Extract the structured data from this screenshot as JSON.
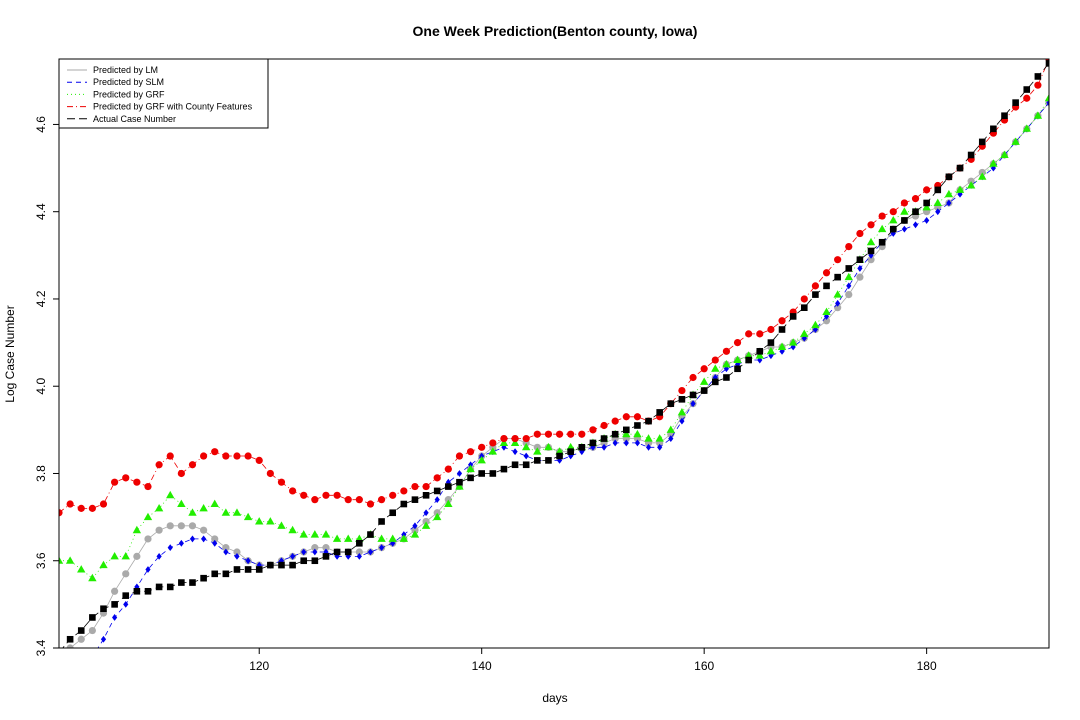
{
  "chart_data": {
    "type": "line",
    "title": "One Week Prediction(Benton county, Iowa)",
    "xlabel": "days",
    "ylabel": "Log Case Number",
    "xlim": [
      102,
      191
    ],
    "ylim": [
      3.4,
      4.75
    ],
    "xticks": [
      120,
      140,
      160,
      180
    ],
    "yticks": [
      3.4,
      3.6,
      3.8,
      4.0,
      4.2,
      4.4,
      4.6
    ],
    "x_start": 102,
    "legend_position": "top-left",
    "series": [
      {
        "name": "Predicted by LM",
        "color": "#aaaaaa",
        "marker": "circle",
        "values": [
          3.37,
          3.4,
          3.42,
          3.44,
          3.48,
          3.53,
          3.57,
          3.61,
          3.65,
          3.67,
          3.68,
          3.68,
          3.68,
          3.67,
          3.65,
          3.63,
          3.62,
          3.6,
          3.59,
          3.59,
          3.6,
          3.61,
          3.62,
          3.63,
          3.63,
          3.62,
          3.62,
          3.62,
          3.62,
          3.63,
          3.64,
          3.65,
          3.67,
          3.69,
          3.71,
          3.74,
          3.77,
          3.81,
          3.84,
          3.86,
          3.88,
          3.88,
          3.87,
          3.86,
          3.86,
          3.85,
          3.85,
          3.86,
          3.86,
          3.87,
          3.88,
          3.88,
          3.88,
          3.87,
          3.87,
          3.89,
          3.93,
          3.96,
          3.99,
          4.02,
          4.05,
          4.06,
          4.07,
          4.08,
          4.09,
          4.09,
          4.1,
          4.11,
          4.13,
          4.15,
          4.18,
          4.21,
          4.25,
          4.29,
          4.32,
          4.36,
          4.38,
          4.39,
          4.4,
          4.41,
          4.42,
          4.45,
          4.47,
          4.49,
          4.51,
          4.53,
          4.56,
          4.59,
          4.62,
          4.65
        ]
      },
      {
        "name": "Predicted by SLM",
        "color": "#0000ee",
        "marker": "diamond",
        "values": [
          3.34,
          3.36,
          3.37,
          3.38,
          3.42,
          3.47,
          3.5,
          3.54,
          3.58,
          3.61,
          3.63,
          3.64,
          3.65,
          3.65,
          3.64,
          3.62,
          3.61,
          3.6,
          3.59,
          3.59,
          3.6,
          3.61,
          3.62,
          3.62,
          3.62,
          3.61,
          3.61,
          3.61,
          3.62,
          3.63,
          3.64,
          3.66,
          3.68,
          3.71,
          3.74,
          3.78,
          3.8,
          3.82,
          3.84,
          3.85,
          3.86,
          3.85,
          3.84,
          3.83,
          3.83,
          3.83,
          3.84,
          3.85,
          3.86,
          3.86,
          3.87,
          3.87,
          3.87,
          3.86,
          3.86,
          3.88,
          3.92,
          3.96,
          3.99,
          4.02,
          4.04,
          4.05,
          4.06,
          4.06,
          4.07,
          4.08,
          4.09,
          4.11,
          4.13,
          4.16,
          4.19,
          4.23,
          4.27,
          4.3,
          4.33,
          4.35,
          4.36,
          4.37,
          4.38,
          4.4,
          4.42,
          4.44,
          4.46,
          4.48,
          4.5,
          4.53,
          4.56,
          4.59,
          4.62,
          4.65
        ]
      },
      {
        "name": "Predicted by GRF",
        "color": "#22ee00",
        "marker": "triangle",
        "values": [
          3.6,
          3.6,
          3.58,
          3.56,
          3.59,
          3.61,
          3.61,
          3.67,
          3.7,
          3.72,
          3.75,
          3.73,
          3.71,
          3.72,
          3.73,
          3.71,
          3.71,
          3.7,
          3.69,
          3.69,
          3.68,
          3.67,
          3.66,
          3.66,
          3.66,
          3.65,
          3.65,
          3.65,
          3.66,
          3.65,
          3.65,
          3.65,
          3.66,
          3.68,
          3.7,
          3.73,
          3.77,
          3.81,
          3.83,
          3.85,
          3.87,
          3.87,
          3.86,
          3.85,
          3.86,
          3.85,
          3.86,
          3.86,
          3.87,
          3.88,
          3.89,
          3.89,
          3.89,
          3.88,
          3.88,
          3.9,
          3.94,
          3.98,
          4.01,
          4.04,
          4.05,
          4.06,
          4.07,
          4.07,
          4.08,
          4.09,
          4.1,
          4.12,
          4.14,
          4.17,
          4.21,
          4.25,
          4.29,
          4.33,
          4.36,
          4.38,
          4.4,
          4.4,
          4.41,
          4.42,
          4.44,
          4.45,
          4.46,
          4.48,
          4.51,
          4.53,
          4.56,
          4.59,
          4.62,
          4.66
        ]
      },
      {
        "name": "Predicted by GRF with County Features",
        "color": "#ee0000",
        "marker": "circle",
        "values": [
          3.71,
          3.73,
          3.72,
          3.72,
          3.73,
          3.78,
          3.79,
          3.78,
          3.77,
          3.82,
          3.84,
          3.8,
          3.82,
          3.84,
          3.85,
          3.84,
          3.84,
          3.84,
          3.83,
          3.8,
          3.78,
          3.76,
          3.75,
          3.74,
          3.75,
          3.75,
          3.74,
          3.74,
          3.73,
          3.74,
          3.75,
          3.76,
          3.77,
          3.77,
          3.79,
          3.81,
          3.84,
          3.85,
          3.86,
          3.87,
          3.88,
          3.88,
          3.88,
          3.89,
          3.89,
          3.89,
          3.89,
          3.89,
          3.9,
          3.91,
          3.92,
          3.93,
          3.93,
          3.92,
          3.93,
          3.96,
          3.99,
          4.02,
          4.04,
          4.06,
          4.08,
          4.1,
          4.12,
          4.12,
          4.13,
          4.15,
          4.17,
          4.2,
          4.23,
          4.26,
          4.29,
          4.32,
          4.35,
          4.37,
          4.39,
          4.4,
          4.42,
          4.43,
          4.45,
          4.46,
          4.48,
          4.5,
          4.52,
          4.55,
          4.58,
          4.61,
          4.64,
          4.66,
          4.69,
          4.75
        ]
      },
      {
        "name": "Actual Case Number",
        "color": "#000000",
        "marker": "square",
        "values": [
          3.39,
          3.42,
          3.44,
          3.47,
          3.49,
          3.5,
          3.52,
          3.53,
          3.53,
          3.54,
          3.54,
          3.55,
          3.55,
          3.56,
          3.57,
          3.57,
          3.58,
          3.58,
          3.58,
          3.59,
          3.59,
          3.59,
          3.6,
          3.6,
          3.61,
          3.62,
          3.62,
          3.64,
          3.66,
          3.69,
          3.71,
          3.73,
          3.74,
          3.75,
          3.76,
          3.77,
          3.78,
          3.79,
          3.8,
          3.8,
          3.81,
          3.82,
          3.82,
          3.83,
          3.83,
          3.84,
          3.85,
          3.86,
          3.87,
          3.88,
          3.89,
          3.9,
          3.91,
          3.92,
          3.94,
          3.96,
          3.97,
          3.98,
          3.99,
          4.01,
          4.02,
          4.04,
          4.06,
          4.08,
          4.1,
          4.13,
          4.16,
          4.18,
          4.21,
          4.23,
          4.25,
          4.27,
          4.29,
          4.31,
          4.33,
          4.36,
          4.38,
          4.4,
          4.42,
          4.45,
          4.48,
          4.5,
          4.53,
          4.56,
          4.59,
          4.62,
          4.65,
          4.68,
          4.71,
          4.74
        ]
      }
    ]
  }
}
